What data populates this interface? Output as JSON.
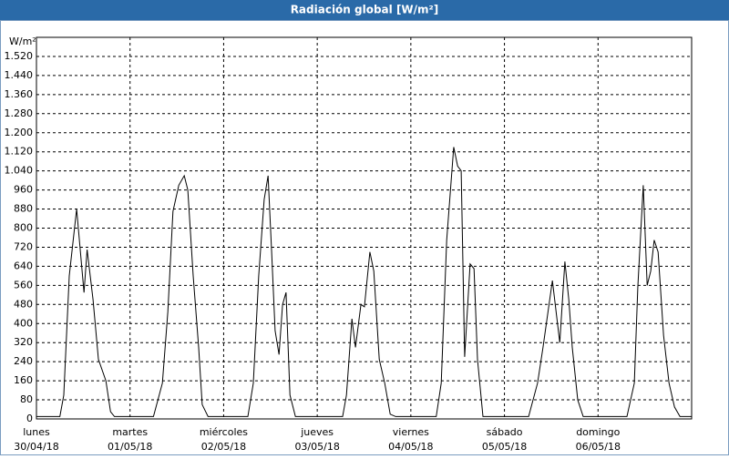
{
  "chart_data": {
    "type": "line",
    "title": "Radiación global [W/m²]",
    "y_label": "W/m²",
    "x": [
      0,
      6,
      7,
      8.4,
      10.3,
      11.7,
      12.2,
      13,
      14.5,
      15.9,
      17.8,
      19,
      20,
      30,
      32.3,
      33.7,
      35,
      36.5,
      37.9,
      38.8,
      40.2,
      41.6,
      42.5,
      44,
      54.2,
      55.6,
      57,
      58.4,
      59.4,
      60.3,
      61.2,
      62.2,
      63.1,
      64,
      65,
      66.4,
      78.5,
      79.5,
      80.9,
      81.8,
      83.2,
      84.1,
      85.5,
      86.5,
      87.9,
      89.3,
      90.7,
      92.1,
      102.5,
      103.8,
      105.2,
      107,
      108,
      108.9,
      109.8,
      111.2,
      112.2,
      113.1,
      114.5,
      126.2,
      128.5,
      129.9,
      132.3,
      134.2,
      135.5,
      136.5,
      137.4,
      138.8,
      140.2,
      151.4,
      153.3,
      154.2,
      155.6,
      156.6,
      157.5,
      158.4,
      159.4,
      160.8,
      162.2,
      163.6,
      165,
      168
    ],
    "values": [
      10,
      10,
      100,
      600,
      880,
      620,
      530,
      710,
      500,
      250,
      160,
      30,
      10,
      10,
      150,
      450,
      870,
      980,
      1020,
      960,
      600,
      300,
      60,
      10,
      10,
      150,
      600,
      920,
      1020,
      700,
      370,
      270,
      480,
      530,
      100,
      10,
      10,
      100,
      420,
      300,
      480,
      470,
      700,
      620,
      250,
      150,
      20,
      10,
      10,
      150,
      750,
      1140,
      1060,
      1040,
      260,
      650,
      630,
      250,
      10,
      10,
      150,
      300,
      580,
      320,
      660,
      500,
      300,
      80,
      10,
      10,
      150,
      550,
      980,
      560,
      620,
      750,
      700,
      350,
      150,
      50,
      10,
      10
    ],
    "color": "#000000",
    "xlim": [
      0,
      168
    ],
    "xticks": [
      {
        "value": 0,
        "label": "lunes",
        "date": "30/04/18"
      },
      {
        "value": 24,
        "label": "martes",
        "date": "01/05/18"
      },
      {
        "value": 48,
        "label": "miércoles",
        "date": "02/05/18"
      },
      {
        "value": 72,
        "label": "jueves",
        "date": "03/05/18"
      },
      {
        "value": 96,
        "label": "viernes",
        "date": "04/05/18"
      },
      {
        "value": 120,
        "label": "sábado",
        "date": "05/05/18"
      },
      {
        "value": 144,
        "label": "domingo",
        "date": "06/05/18"
      }
    ],
    "ylim": [
      0,
      1600
    ],
    "yticks": [
      0,
      80,
      160,
      240,
      320,
      400,
      480,
      560,
      640,
      720,
      800,
      880,
      960,
      {
        "value": 1040,
        "label": "1.040"
      },
      {
        "value": 1120,
        "label": "1.120"
      },
      {
        "value": 1200,
        "label": "1.200"
      },
      {
        "value": 1280,
        "label": "1.280"
      },
      {
        "value": 1360,
        "label": "1.360"
      },
      {
        "value": 1440,
        "label": "1.440"
      },
      {
        "value": 1520,
        "label": "1.520"
      }
    ],
    "grid": true
  }
}
